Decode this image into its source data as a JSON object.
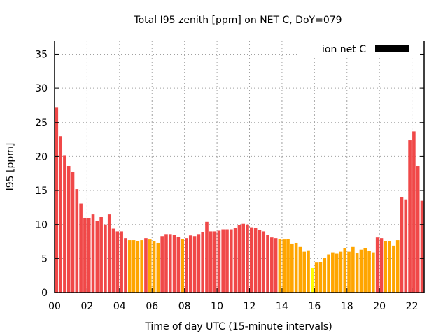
{
  "chart_data": {
    "type": "bar",
    "title": "Total I95 zenith [ppm] on NET C, DoY=079",
    "xlabel": "Time of day UTC (15-minute intervals)",
    "ylabel": "I95 [ppm]",
    "xlim": [
      0,
      22.75
    ],
    "ylim": [
      0,
      37
    ],
    "xticks": [
      "00",
      "02",
      "04",
      "06",
      "08",
      "10",
      "12",
      "14",
      "16",
      "18",
      "20",
      "22"
    ],
    "yticks": [
      "0",
      "5",
      "10",
      "15",
      "20",
      "25",
      "30",
      "35"
    ],
    "grid": true,
    "legend": {
      "label": "ion net C",
      "color": "#000000",
      "placement": "top-right"
    },
    "bar_interval_hours": 0.25,
    "colors": {
      "high": "#f04848",
      "medium": "#ffa500",
      "low": "#ffff00"
    },
    "values": [
      27.2,
      23.0,
      20.1,
      18.6,
      17.7,
      15.2,
      13.1,
      11.0,
      10.9,
      11.5,
      10.5,
      11.1,
      10.0,
      11.5,
      9.4,
      9.0,
      9.0,
      8.0,
      7.7,
      7.7,
      7.6,
      7.7,
      8.0,
      7.8,
      7.6,
      7.3,
      8.3,
      8.6,
      8.6,
      8.5,
      8.2,
      7.9,
      8.0,
      8.4,
      8.3,
      8.6,
      8.9,
      10.4,
      9.0,
      9.0,
      9.1,
      9.3,
      9.3,
      9.3,
      9.5,
      9.9,
      10.1,
      10.0,
      9.6,
      9.5,
      9.2,
      9.0,
      8.5,
      8.1,
      8.0,
      7.9,
      7.8,
      7.9,
      7.2,
      7.3,
      6.7,
      6.0,
      6.2,
      3.6,
      4.4,
      4.5,
      5.1,
      5.6,
      5.9,
      5.7,
      6.0,
      6.5,
      6.0,
      6.7,
      5.8,
      6.3,
      6.5,
      6.1,
      5.9,
      8.1,
      8.0,
      7.6,
      7.6,
      6.9,
      7.7,
      14.0,
      13.7,
      22.4,
      23.7,
      18.6,
      13.5
    ]
  }
}
